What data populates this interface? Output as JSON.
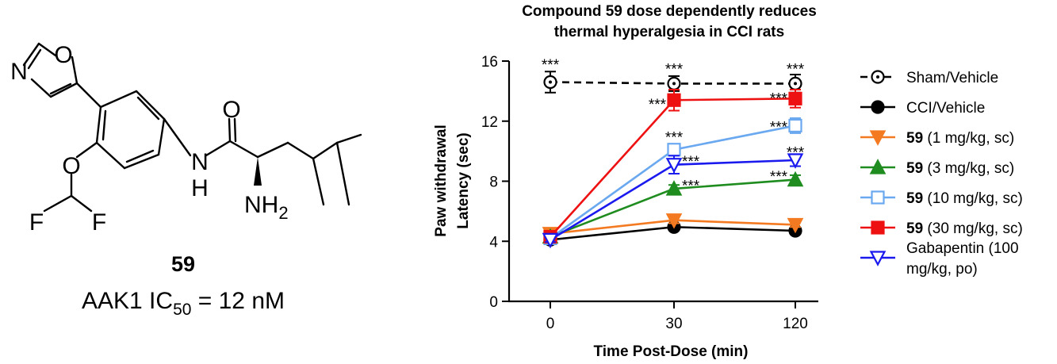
{
  "compound": {
    "label": "59",
    "ic50_prefix": "AAK1 IC",
    "ic50_subscript": "50",
    "ic50_suffix": " = 12 nM",
    "atoms": {
      "n_ring": "N",
      "o_ring": "O",
      "o_ether": "O",
      "f1": "F",
      "f2": "F",
      "nh": "N",
      "h": "H",
      "o_carbonyl": "O",
      "nh2": "NH",
      "nh2_sub": "2"
    }
  },
  "chart_data": {
    "type": "line",
    "title": [
      "Compound 59 dose dependently reduces",
      "thermal hyperalgesia in CCI rats"
    ],
    "xlabel": "Time Post-Dose (min)",
    "ylabel": [
      "Paw withdrawal",
      "Latency (sec)"
    ],
    "categories": [
      "0",
      "30",
      "120"
    ],
    "ylim": [
      0,
      16
    ],
    "yticks": [
      0,
      4,
      8,
      12,
      16
    ],
    "series": [
      {
        "name": "Sham/Vehicle",
        "name_bold": "",
        "name_rest": "Sham/Vehicle",
        "color": "#000000",
        "marker": "circle-open",
        "dash": true,
        "values": [
          14.6,
          14.5,
          14.5
        ],
        "errors": [
          0.7,
          0.5,
          0.6
        ]
      },
      {
        "name": "CCI/Vehicle",
        "name_bold": "",
        "name_rest": "CCI/Vehicle",
        "color": "#000000",
        "marker": "circle",
        "dash": false,
        "values": [
          4.1,
          4.95,
          4.7
        ],
        "errors": [
          0.15,
          0.2,
          0.15
        ]
      },
      {
        "name": "59 (1 mg/kg, sc)",
        "name_bold": "59",
        "name_rest": " (1 mg/kg, sc)",
        "color": "#f47a22",
        "marker": "triangle-down",
        "dash": false,
        "values": [
          4.5,
          5.4,
          5.1
        ],
        "errors": [
          0.15,
          0.2,
          0.15
        ]
      },
      {
        "name": "59 (3 mg/kg, sc)",
        "name_bold": "59",
        "name_rest": " (3 mg/kg, sc)",
        "color": "#1e8c1e",
        "marker": "triangle-up",
        "dash": false,
        "values": [
          4.3,
          7.5,
          8.1
        ],
        "errors": [
          0.15,
          0.25,
          0.3
        ]
      },
      {
        "name": "59 (10 mg/kg, sc)",
        "name_bold": "59",
        "name_rest": " (10 mg/kg, sc)",
        "color": "#6aa8f0",
        "marker": "square-open",
        "dash": false,
        "values": [
          4.2,
          10.1,
          11.7
        ],
        "errors": [
          0.15,
          0.3,
          0.5
        ]
      },
      {
        "name": "59 (30 mg/kg, sc)",
        "name_bold": "59",
        "name_rest": " (30 mg/kg, sc)",
        "color": "#ee1111",
        "marker": "square",
        "dash": false,
        "values": [
          4.3,
          13.4,
          13.5
        ],
        "errors": [
          0.15,
          0.7,
          0.6
        ]
      },
      {
        "name": "Gabapentin (100 mg/kg, po)",
        "name_bold": "",
        "name_rest": "Gabapentin (100|mg/kg, po)",
        "color": "#1a1aee",
        "marker": "triangle-down-open",
        "dash": false,
        "values": [
          4.1,
          9.1,
          9.4
        ],
        "errors": [
          0.15,
          0.6,
          0.4
        ]
      }
    ],
    "annotations": [
      {
        "text": "***",
        "x": "0",
        "y": 15.85
      },
      {
        "text": "***",
        "x": "30",
        "y": 15.55
      },
      {
        "text": "***",
        "x": "120",
        "y": 15.55
      },
      {
        "text": "***",
        "x": "30",
        "y": 13.2,
        "side": "left"
      },
      {
        "text": "***",
        "x": "120",
        "y": 13.6,
        "side": "left"
      },
      {
        "text": "***",
        "x": "30",
        "y": 11.0
      },
      {
        "text": "***",
        "x": "120",
        "y": 11.7,
        "side": "left"
      },
      {
        "text": "***",
        "x": "30",
        "y": 9.4,
        "side": "right"
      },
      {
        "text": "***",
        "x": "120",
        "y": 10.0
      },
      {
        "text": "***",
        "x": "30",
        "y": 7.8,
        "side": "right"
      },
      {
        "text": "***",
        "x": "120",
        "y": 8.4,
        "side": "left"
      }
    ],
    "grid": false,
    "legend_position": "right"
  }
}
